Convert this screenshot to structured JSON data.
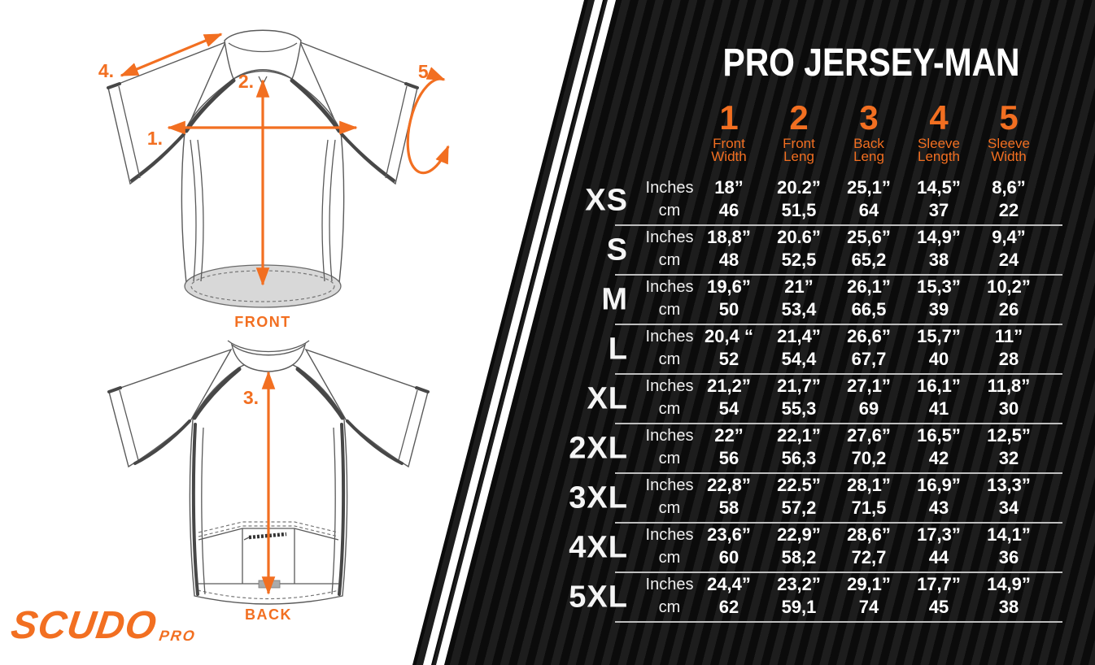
{
  "brand": {
    "name": "SCUDO",
    "sub": "PRO"
  },
  "diagram": {
    "front_label": "FRONT",
    "back_label": "BACK",
    "markers": {
      "m1": "1.",
      "m2": "2.",
      "m3": "3.",
      "m4": "4.",
      "m5": "5."
    }
  },
  "chart_data": {
    "type": "table",
    "title": "PRO JERSEY-MAN",
    "columns": [
      {
        "num": "1",
        "label": [
          "Front",
          "Width"
        ]
      },
      {
        "num": "2",
        "label": [
          "Front",
          "Leng"
        ]
      },
      {
        "num": "3",
        "label": [
          "Back",
          "Leng"
        ]
      },
      {
        "num": "4",
        "label": [
          "Sleeve",
          "Length"
        ]
      },
      {
        "num": "5",
        "label": [
          "Sleeve",
          "Width"
        ]
      }
    ],
    "unit_labels": [
      "Inches",
      "cm"
    ],
    "rows": [
      {
        "size": "XS",
        "inches": [
          "18”",
          "20.2”",
          "25,1”",
          "14,5”",
          "8,6”"
        ],
        "cm": [
          "46",
          "51,5",
          "64",
          "37",
          "22"
        ]
      },
      {
        "size": "S",
        "inches": [
          "18,8”",
          "20.6”",
          "25,6”",
          "14,9”",
          "9,4”"
        ],
        "cm": [
          "48",
          "52,5",
          "65,2",
          "38",
          "24"
        ]
      },
      {
        "size": "M",
        "inches": [
          "19,6”",
          "21”",
          "26,1”",
          "15,3”",
          "10,2”"
        ],
        "cm": [
          "50",
          "53,4",
          "66,5",
          "39",
          "26"
        ]
      },
      {
        "size": "L",
        "inches": [
          "20,4 “",
          "21,4”",
          "26,6”",
          "15,7”",
          "11”"
        ],
        "cm": [
          "52",
          "54,4",
          "67,7",
          "40",
          "28"
        ]
      },
      {
        "size": "XL",
        "inches": [
          "21,2”",
          "21,7”",
          "27,1”",
          "16,1”",
          "11,8”"
        ],
        "cm": [
          "54",
          "55,3",
          "69",
          "41",
          "30"
        ]
      },
      {
        "size": "2XL",
        "inches": [
          "22”",
          "22,1”",
          "27,6”",
          "16,5”",
          "12,5”"
        ],
        "cm": [
          "56",
          "56,3",
          "70,2",
          "42",
          "32"
        ]
      },
      {
        "size": "3XL",
        "inches": [
          "22,8”",
          "22.5”",
          "28,1”",
          "16,9”",
          "13,3”"
        ],
        "cm": [
          "58",
          "57,2",
          "71,5",
          "43",
          "34"
        ]
      },
      {
        "size": "4XL",
        "inches": [
          "23,6”",
          "22,9”",
          "28,6”",
          "17,3”",
          "14,1”"
        ],
        "cm": [
          "60",
          "58,2",
          "72,7",
          "44",
          "36"
        ]
      },
      {
        "size": "5XL",
        "inches": [
          "24,4”",
          "23,2”",
          "29,1”",
          "17,7”",
          "14,9”"
        ],
        "cm": [
          "62",
          "59,1",
          "74",
          "45",
          "38"
        ]
      }
    ]
  },
  "colors": {
    "accent_orange": "#f26f21",
    "panel_black": "#0b0b0b",
    "stripe_gray": "#1d1d1d",
    "row_divider": "#bdbdbd",
    "text_white": "#ffffff"
  }
}
